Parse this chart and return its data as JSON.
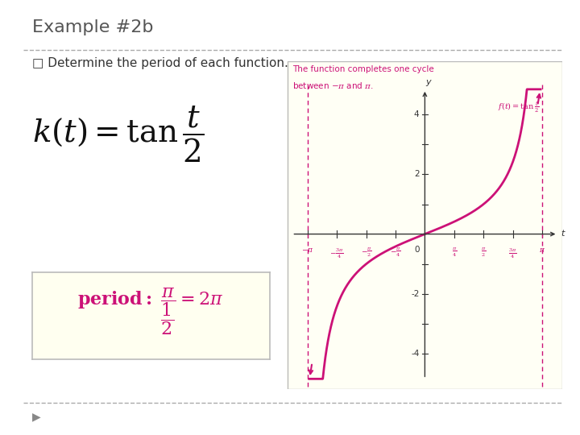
{
  "title": "Example #2b",
  "subtitle": "□ Determine the period of each function.",
  "bg_color": "#ffffff",
  "graph_bg_color": "#fffff5",
  "curve_color": "#cc1177",
  "dark_color": "#333333",
  "pink_color": "#cc1177",
  "period_box_bg": "#fffff0",
  "xlim_graph": [
    -4.0,
    4.0
  ],
  "ylim_graph": [
    -5.0,
    5.5
  ],
  "annotation_line1": "The function completes one cycle",
  "annotation_line2": "between −π and π."
}
